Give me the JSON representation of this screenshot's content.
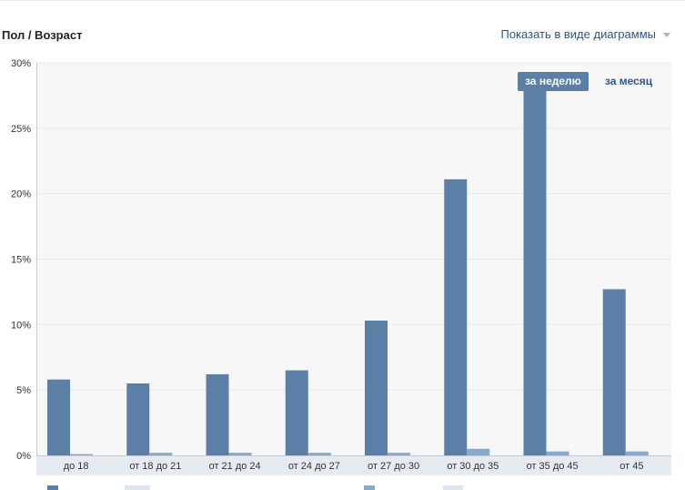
{
  "header": {
    "title": "Пол / Возраст",
    "view_toggle_label": "Показать в виде диаграммы"
  },
  "period_switch": {
    "week_label": "за неделю",
    "month_label": "за месяц",
    "active": "week"
  },
  "colors": {
    "series_primary": "#5b7fa6",
    "series_secondary": "#86aacb",
    "plot_background": "#f7f7f8",
    "axis_band": "#e6ebf1",
    "grid": "#e9eaec"
  },
  "chart_data": {
    "type": "bar",
    "title": "",
    "xlabel": "",
    "ylabel": "",
    "ylim": [
      0,
      30
    ],
    "yticks": [
      "0%",
      "5%",
      "10%",
      "15%",
      "20%",
      "25%",
      "30%"
    ],
    "ytick_values": [
      0,
      5,
      10,
      15,
      20,
      25,
      30
    ],
    "grid": true,
    "categories": [
      "до 18",
      "от 18 до 21",
      "от 21 до 24",
      "от 24 до 27",
      "от 27 до 30",
      "от 30 до 35",
      "от 35 до 45",
      "от 45"
    ],
    "series": [
      {
        "values": [
          5.8,
          5.5,
          6.2,
          6.5,
          10.3,
          21.1,
          28.5,
          12.7
        ]
      },
      {
        "values": [
          0.1,
          0.2,
          0.2,
          0.2,
          0.2,
          0.5,
          0.3,
          0.3
        ]
      }
    ]
  }
}
